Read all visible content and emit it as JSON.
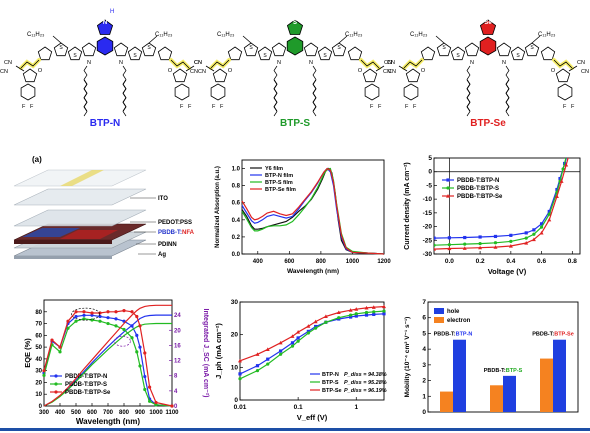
{
  "molecules": [
    {
      "name": "BTP-N",
      "heteroatom": "N",
      "heteroatom_extra": "H",
      "color": "#2a2af0"
    },
    {
      "name": "BTP-S",
      "heteroatom": "S",
      "color": "#1f9a2a"
    },
    {
      "name": "BTP-Se",
      "heteroatom": "Se",
      "color": "#e02020"
    }
  ],
  "structure_labels": {
    "side_chain": "C₁₁H₂₃",
    "nitrile": "CN",
    "nitrogen": "N",
    "sulfur": "S",
    "oxygen": "O",
    "fluorine": "F"
  },
  "panel_a": {
    "tag": "(a)",
    "layers": [
      "ITO",
      "PEDOT:PSS",
      "PDINN",
      "Ag"
    ],
    "active_layer": {
      "prefix": "PBDB-T:",
      "suffix": "NFA",
      "prefix_color": "#2233cc",
      "suffix_color": "#dd2222"
    }
  },
  "chart_data": [
    {
      "type": "line",
      "id": "absorption",
      "ylabel": "Normalized Absorption (a.u.)",
      "xlabel": "Wavelength (nm)",
      "xlim": [
        300,
        1200
      ],
      "ylim": [
        0,
        1.1
      ],
      "xticks": [
        "400",
        "600",
        "800",
        "1000",
        "1200"
      ],
      "yticks": [
        "0.0",
        "0.2",
        "0.4",
        "0.6",
        "0.8",
        "1.0"
      ],
      "legend": [
        "Y6 film",
        "BTP-N film",
        "BTP-S film",
        "BTP-Se film"
      ],
      "series": [
        {
          "name": "Y6 film",
          "color": "#111111",
          "x": [
            300,
            330,
            360,
            380,
            400,
            430,
            460,
            500,
            540,
            580,
            620,
            660,
            700,
            740,
            780,
            810,
            830,
            850,
            870,
            890,
            910,
            930,
            960,
            1000,
            1100,
            1200
          ],
          "y": [
            0.52,
            0.44,
            0.33,
            0.29,
            0.29,
            0.3,
            0.32,
            0.34,
            0.36,
            0.38,
            0.43,
            0.5,
            0.56,
            0.64,
            0.76,
            0.88,
            0.97,
            1.0,
            0.95,
            0.72,
            0.4,
            0.16,
            0.05,
            0.02,
            0.01,
            0.0
          ]
        },
        {
          "name": "BTP-N film",
          "color": "#2233ee",
          "x": [
            300,
            330,
            360,
            380,
            400,
            430,
            460,
            500,
            540,
            580,
            620,
            660,
            700,
            740,
            780,
            800,
            820,
            840,
            860,
            880,
            900,
            930,
            960,
            1000,
            1100,
            1200
          ],
          "y": [
            0.57,
            0.48,
            0.39,
            0.36,
            0.37,
            0.4,
            0.44,
            0.46,
            0.44,
            0.42,
            0.44,
            0.53,
            0.63,
            0.72,
            0.83,
            0.9,
            0.96,
            1.0,
            0.96,
            0.8,
            0.52,
            0.2,
            0.06,
            0.02,
            0.01,
            0.0
          ]
        },
        {
          "name": "BTP-S film",
          "color": "#22bb22",
          "x": [
            300,
            330,
            360,
            380,
            400,
            430,
            460,
            500,
            540,
            580,
            620,
            660,
            700,
            740,
            780,
            800,
            820,
            840,
            860,
            880,
            900,
            930,
            960,
            1000,
            1100,
            1200
          ],
          "y": [
            0.5,
            0.41,
            0.31,
            0.27,
            0.27,
            0.29,
            0.32,
            0.33,
            0.33,
            0.34,
            0.38,
            0.46,
            0.55,
            0.65,
            0.78,
            0.86,
            0.94,
            0.99,
            1.0,
            0.86,
            0.58,
            0.24,
            0.08,
            0.03,
            0.01,
            0.0
          ]
        },
        {
          "name": "BTP-Se film",
          "color": "#e02222",
          "x": [
            300,
            330,
            360,
            380,
            400,
            430,
            460,
            500,
            540,
            580,
            620,
            660,
            700,
            740,
            780,
            800,
            820,
            840,
            860,
            880,
            900,
            930,
            960,
            1000,
            1100,
            1200
          ],
          "y": [
            0.62,
            0.53,
            0.43,
            0.4,
            0.41,
            0.44,
            0.48,
            0.5,
            0.47,
            0.45,
            0.47,
            0.55,
            0.64,
            0.73,
            0.84,
            0.9,
            0.96,
            1.0,
            0.98,
            0.84,
            0.56,
            0.22,
            0.07,
            0.02,
            0.01,
            0.0
          ]
        }
      ]
    },
    {
      "type": "line",
      "id": "jv",
      "ylabel": "Current density (mA cm⁻²)",
      "xlabel": "Voltage (V)",
      "xlim": [
        -0.1,
        0.85
      ],
      "ylim": [
        -30,
        5
      ],
      "xticks": [
        "0.0",
        "0.2",
        "0.4",
        "0.6",
        "0.8"
      ],
      "yticks": [
        "5",
        "0",
        "-5",
        "-10",
        "-15",
        "-20",
        "-25",
        "-30"
      ],
      "legend": [
        "PBDB-T:BTP-N",
        "PBDB-T:BTP-S",
        "PBDB-T:BTP-Se"
      ],
      "series": [
        {
          "name": "PBDB-T:BTP-N",
          "color": "#2233ee",
          "marker": "square",
          "x": [
            -0.1,
            0.0,
            0.1,
            0.2,
            0.3,
            0.4,
            0.5,
            0.55,
            0.6,
            0.65,
            0.7,
            0.72,
            0.75,
            0.78
          ],
          "y": [
            -24.2,
            -24.1,
            -24.0,
            -23.8,
            -23.6,
            -23.2,
            -22.3,
            -21.2,
            -19.0,
            -14.5,
            -6.5,
            -2.5,
            3.0,
            8.0
          ]
        },
        {
          "name": "PBDB-T:BTP-S",
          "color": "#22bb22",
          "marker": "circle",
          "x": [
            -0.1,
            0.0,
            0.1,
            0.2,
            0.3,
            0.4,
            0.5,
            0.55,
            0.6,
            0.65,
            0.7,
            0.72,
            0.74,
            0.77
          ],
          "y": [
            -26.8,
            -26.6,
            -26.4,
            -26.2,
            -25.9,
            -25.4,
            -24.2,
            -22.8,
            -20.2,
            -15.5,
            -7.5,
            -3.5,
            1.0,
            7.5
          ]
        },
        {
          "name": "PBDB-T:BTP-Se",
          "color": "#e02222",
          "marker": "triangle",
          "x": [
            -0.1,
            0.0,
            0.1,
            0.2,
            0.3,
            0.4,
            0.5,
            0.55,
            0.6,
            0.65,
            0.7,
            0.73,
            0.76,
            0.79
          ],
          "y": [
            -28.2,
            -28.0,
            -27.9,
            -27.7,
            -27.5,
            -27.1,
            -26.0,
            -24.7,
            -22.3,
            -17.5,
            -9.0,
            -3.5,
            2.5,
            8.5
          ]
        }
      ]
    },
    {
      "type": "line",
      "id": "eqe",
      "ylabel": "EQE (%)",
      "y2label": "Integrated J_SC (mA cm⁻²)",
      "xlabel": "Wavelength (nm)",
      "xlim": [
        300,
        1100
      ],
      "ylim": [
        0,
        90
      ],
      "y2lim": [
        0,
        28
      ],
      "xticks": [
        "300",
        "400",
        "500",
        "600",
        "700",
        "800",
        "900",
        "1000",
        "1100"
      ],
      "yticks": [
        "0",
        "10",
        "20",
        "30",
        "40",
        "50",
        "60",
        "70",
        "80"
      ],
      "y2ticks": [
        "0",
        "4",
        "8",
        "12",
        "16",
        "20",
        "24"
      ],
      "legend": [
        "PBDB-T:BTP-N",
        "PBDB-T:BTP-S",
        "PBDB-T:BTP-Se"
      ],
      "series": [
        {
          "name": "PBDB-T:BTP-N",
          "color": "#2233ee",
          "x": [
            300,
            350,
            400,
            450,
            500,
            550,
            600,
            650,
            700,
            750,
            800,
            850,
            880,
            900,
            930,
            960,
            1000,
            1100
          ],
          "y": [
            28,
            55,
            50,
            70,
            76,
            77,
            77,
            76,
            75,
            74,
            72,
            68,
            60,
            50,
            25,
            6,
            1,
            0
          ],
          "jsc": [
            0,
            1.1,
            2.7,
            4.5,
            6.8,
            9.1,
            11.4,
            13.6,
            15.7,
            17.7,
            19.6,
            21.3,
            22.4,
            23.1,
            23.7,
            23.9,
            24.0,
            24.0
          ]
        },
        {
          "name": "PBDB-T:BTP-S",
          "color": "#22bb22",
          "x": [
            300,
            350,
            400,
            450,
            500,
            550,
            600,
            650,
            700,
            750,
            800,
            850,
            880,
            900,
            930,
            960,
            1000,
            1100
          ],
          "y": [
            26,
            52,
            46,
            66,
            72,
            74,
            73,
            72,
            70,
            68,
            65,
            58,
            46,
            34,
            14,
            4,
            1,
            0
          ],
          "jsc": [
            0,
            1.0,
            2.5,
            4.3,
            6.5,
            8.7,
            10.9,
            12.9,
            14.9,
            16.8,
            18.6,
            20.1,
            20.9,
            21.3,
            21.6,
            21.7,
            21.8,
            21.8
          ]
        },
        {
          "name": "PBDB-T:BTP-Se",
          "color": "#e02222",
          "x": [
            300,
            350,
            400,
            450,
            500,
            550,
            600,
            650,
            700,
            750,
            800,
            850,
            880,
            900,
            930,
            960,
            1000,
            1100
          ],
          "y": [
            30,
            56,
            50,
            72,
            80,
            80,
            79,
            79,
            80,
            80,
            81,
            80,
            76,
            68,
            45,
            16,
            3,
            0
          ],
          "jsc": [
            0,
            1.2,
            2.8,
            4.9,
            7.3,
            9.8,
            12.2,
            14.6,
            17.0,
            19.4,
            21.8,
            24.0,
            25.2,
            25.8,
            26.3,
            26.5,
            26.6,
            26.6
          ]
        }
      ]
    },
    {
      "type": "line",
      "id": "jph",
      "ylabel": "J_ph (mA cm⁻²)",
      "xlabel": "V_eff (V)",
      "xscale": "log",
      "xlim": [
        0.01,
        3
      ],
      "ylim": [
        0,
        30
      ],
      "xticks": [
        "0.01",
        "0.1",
        "1"
      ],
      "yticks": [
        "0",
        "10",
        "20",
        "30"
      ],
      "legend": [
        "BTP-N",
        "BTP-S",
        "BTP-Se"
      ],
      "legend_extra": [
        "P_diss = 94.38%",
        "P_diss = 95.28%",
        "P_diss = 96.19%"
      ],
      "series": [
        {
          "name": "BTP-N",
          "color": "#2233ee",
          "x": [
            0.01,
            0.02,
            0.03,
            0.05,
            0.08,
            0.1,
            0.15,
            0.2,
            0.3,
            0.5,
            0.8,
            1,
            1.5,
            2,
            3
          ],
          "y": [
            8,
            10.5,
            12.5,
            15,
            17.5,
            19,
            21,
            22.5,
            23.8,
            24.8,
            25.4,
            25.7,
            26.0,
            26.2,
            26.4
          ]
        },
        {
          "name": "BTP-S",
          "color": "#22bb22",
          "x": [
            0.01,
            0.02,
            0.03,
            0.05,
            0.08,
            0.1,
            0.15,
            0.2,
            0.3,
            0.5,
            0.8,
            1,
            1.5,
            2,
            3
          ],
          "y": [
            6.5,
            9,
            11,
            14,
            16.5,
            18,
            20.5,
            22,
            23.8,
            25.2,
            26.0,
            26.4,
            26.8,
            27.0,
            27.2
          ]
        },
        {
          "name": "BTP-Se",
          "color": "#e02222",
          "x": [
            0.01,
            0.02,
            0.03,
            0.05,
            0.08,
            0.1,
            0.15,
            0.2,
            0.3,
            0.5,
            0.8,
            1,
            1.5,
            2,
            3
          ],
          "y": [
            12,
            14,
            15.5,
            17.5,
            19.5,
            20.8,
            22.6,
            24,
            25.6,
            26.8,
            27.5,
            27.8,
            28.2,
            28.4,
            28.6
          ]
        }
      ]
    },
    {
      "type": "bar",
      "id": "mobility",
      "ylabel": "Mobility (10⁻⁴ cm² V⁻¹ s⁻¹)",
      "ylim": [
        0,
        7
      ],
      "yticks": [
        "0",
        "1",
        "2",
        "3",
        "4",
        "5",
        "6",
        "7"
      ],
      "legend": [
        "hole",
        "electron"
      ],
      "categories": [
        "PBDB-T:BTP-N",
        "PBDB-T:BTP-S",
        "PBDB-T:BTP-Se"
      ],
      "category_parts": [
        [
          "PBDB-T:",
          "BTP-N"
        ],
        [
          "PBDB-T:",
          "BTP-S"
        ],
        [
          "PBDB-T:",
          "BTP-Se"
        ]
      ],
      "category_colors": [
        "#2233ee",
        "#22aa22",
        "#e02222"
      ],
      "series": [
        {
          "name": "hole",
          "color": "#1f3fe0",
          "values": [
            4.6,
            2.3,
            4.6
          ]
        },
        {
          "name": "electron",
          "color": "#f58220",
          "values": [
            1.3,
            1.7,
            3.4
          ]
        }
      ]
    }
  ]
}
